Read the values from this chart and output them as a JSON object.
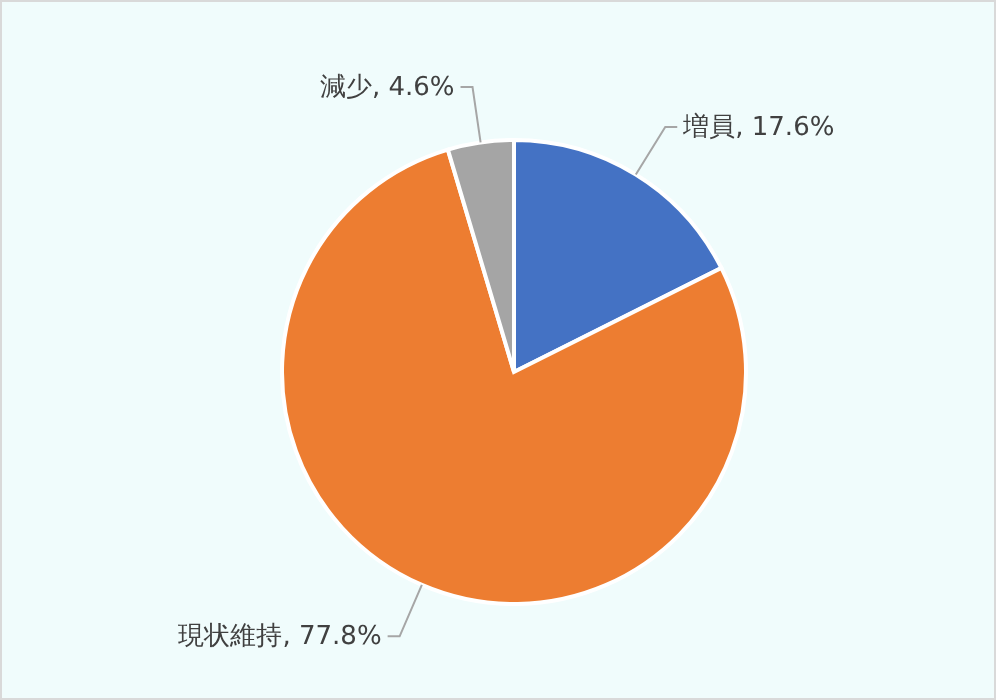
{
  "chart_data": {
    "type": "pie",
    "categories": [
      "増員",
      "現状維持",
      "減少"
    ],
    "values": [
      17.6,
      77.8,
      4.6
    ],
    "colors": [
      "#4472c4",
      "#ed7d31",
      "#a5a5a5"
    ],
    "value_labels": [
      "17.6%",
      "77.8%",
      "4.6%"
    ]
  }
}
